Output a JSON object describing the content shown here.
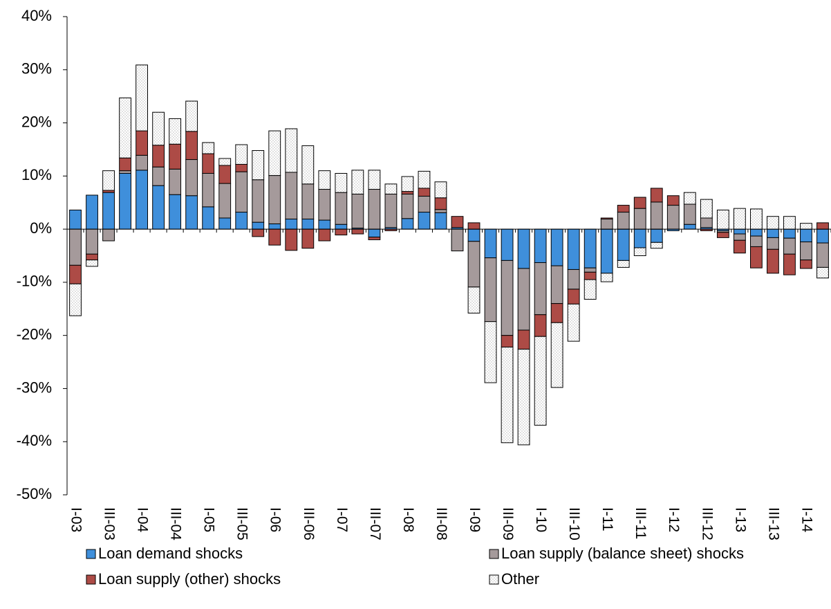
{
  "chart_data": {
    "type": "stacked-bar",
    "categories": [
      "I-03",
      null,
      "III-03",
      null,
      "I-04",
      null,
      "III-04",
      null,
      "I-05",
      null,
      "III-05",
      null,
      "I-06",
      null,
      "III-06",
      null,
      "I-07",
      null,
      "III-07",
      null,
      "I-08",
      null,
      "III-08",
      null,
      "I-09",
      null,
      "III-09",
      null,
      "I-10",
      null,
      "III-10",
      null,
      "I-11",
      null,
      "III-11",
      null,
      "I-12",
      null,
      "III-12",
      null,
      "I-13",
      null,
      "III-13",
      null,
      "I-14",
      null
    ],
    "series": [
      {
        "name": "Loan demand shocks",
        "color": "#3f8fdb",
        "values": [
          3.6,
          6.4,
          6.9,
          10.5,
          11.1,
          8.2,
          6.5,
          6.3,
          4.2,
          2.1,
          3.2,
          1.3,
          1.0,
          1.9,
          1.9,
          1.7,
          0.9,
          0.2,
          -1.5,
          0.3,
          2.0,
          3.2,
          3.1,
          0.3,
          -2.3,
          -5.4,
          -5.9,
          -7.4,
          -6.3,
          -6.9,
          -7.6,
          -7.3,
          -8.3,
          -5.9,
          -3.5,
          -2.5,
          -0.3,
          0.9,
          0.3,
          -0.3,
          -0.9,
          -1.3,
          -1.6,
          -1.7,
          -2.4,
          -2.6
        ]
      },
      {
        "name": "Loan supply (balance sheet) shocks",
        "color": "#a59a9b",
        "values": [
          -6.8,
          -4.7,
          -2.2,
          0.5,
          2.8,
          3.5,
          4.8,
          6.8,
          6.3,
          6.5,
          7.6,
          8.0,
          9.1,
          8.8,
          6.6,
          5.8,
          6.0,
          6.4,
          7.5,
          6.3,
          4.6,
          3.0,
          0.6,
          -4.1,
          -8.6,
          -12.0,
          -14.1,
          -11.6,
          -9.8,
          -7.1,
          -3.7,
          -0.8,
          1.9,
          3.2,
          3.9,
          5.1,
          4.5,
          3.8,
          1.8,
          -0.3,
          -1.2,
          -2.0,
          -2.2,
          -3.0,
          -3.4,
          -4.6
        ]
      },
      {
        "name": "Loan supply (other) shocks",
        "color": "#ad4b46",
        "values": [
          -3.5,
          -1.1,
          0.4,
          2.4,
          4.6,
          4.1,
          4.7,
          5.3,
          3.7,
          3.4,
          1.4,
          -1.4,
          -3.0,
          -4.0,
          -3.6,
          -2.2,
          -1.1,
          -0.9,
          -0.5,
          -0.3,
          0.5,
          1.5,
          2.2,
          2.1,
          1.2,
          0,
          -2.2,
          -3.6,
          -4.1,
          -3.6,
          -2.8,
          -1.4,
          0.2,
          1.3,
          2.1,
          2.6,
          1.8,
          0,
          -0.3,
          -1.0,
          -2.4,
          -4.0,
          -4.5,
          -3.9,
          -1.6,
          1.2
        ]
      },
      {
        "name": "Other",
        "color": "#ffffff",
        "values": [
          -6.0,
          -1.2,
          3.7,
          11.3,
          12.4,
          6.2,
          4.8,
          5.7,
          2.1,
          1.3,
          3.7,
          5.5,
          8.4,
          8.2,
          7.2,
          3.5,
          3.6,
          4.5,
          3.6,
          1.9,
          2.8,
          3.2,
          3.0,
          0,
          -4.9,
          -11.5,
          -18.0,
          -18.0,
          -16.7,
          -12.2,
          -7.0,
          -3.7,
          -1.6,
          -1.3,
          -1.5,
          -1.1,
          0,
          2.2,
          3.5,
          3.6,
          3.9,
          3.8,
          2.4,
          2.4,
          1.1,
          -2.0
        ]
      }
    ],
    "ylim": [
      -50,
      40
    ],
    "yticks": [
      {
        "value": -50,
        "label": "-50%"
      },
      {
        "value": -40,
        "label": "-40%"
      },
      {
        "value": -30,
        "label": "-30%"
      },
      {
        "value": -20,
        "label": "-20%"
      },
      {
        "value": -10,
        "label": "-10%"
      },
      {
        "value": 0,
        "label": "0%"
      },
      {
        "value": 10,
        "label": "10%"
      },
      {
        "value": 20,
        "label": "20%"
      },
      {
        "value": 30,
        "label": "30%"
      },
      {
        "value": 40,
        "label": "40%"
      }
    ],
    "legend": "bottom"
  }
}
